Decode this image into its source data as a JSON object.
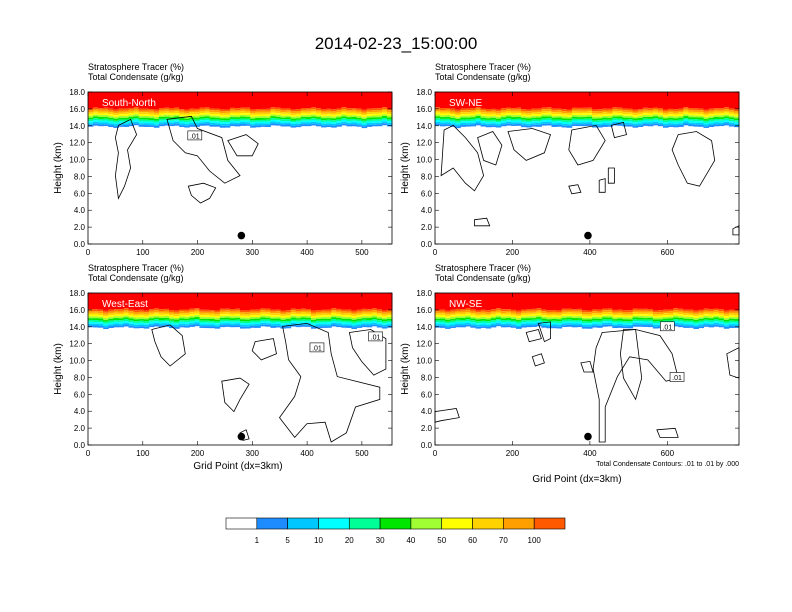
{
  "chart_data": [
    {
      "type": "heatmap",
      "title": "2014-02-23_15:00:00",
      "panels": [
        {
          "id": "sn",
          "label": "South-North",
          "header": [
            "Stratosphere Tracer   (%)",
            "Total Condensate   (g/kg)"
          ],
          "ylabel": "Height (km)",
          "xlabel": "",
          "xlim": [
            0,
            555
          ],
          "xticks": [
            0,
            100,
            200,
            300,
            400,
            500
          ],
          "ylim": [
            0,
            18
          ],
          "yticks": [
            "0.0",
            "2.0",
            "4.0",
            "6.0",
            "8.0",
            "10.0",
            "12.0",
            "14.0",
            "16.0",
            "18.0"
          ],
          "marker_x": 280,
          "marker_y": 1.0,
          "contour_labels": [
            {
              "text": ".01",
              "x": 195,
              "y": 12.8
            }
          ]
        },
        {
          "id": "swne",
          "label": "SW-NE",
          "header": [
            "Stratosphere Tracer   (%)",
            "Total Condensate   (g/kg)"
          ],
          "ylabel": "Height (km)",
          "xlabel": "",
          "xlim": [
            0,
            785
          ],
          "xticks": [
            0,
            200,
            400,
            600
          ],
          "ylim": [
            0,
            18
          ],
          "yticks": [
            "0.0",
            "2.0",
            "4.0",
            "6.0",
            "8.0",
            "10.0",
            "12.0",
            "14.0",
            "16.0",
            "18.0"
          ],
          "marker_x": 395,
          "marker_y": 1.0,
          "contour_labels": []
        },
        {
          "id": "we",
          "label": "West-East",
          "header": [
            "Stratosphere Tracer   (%)",
            "Total Condensate   (g/kg)"
          ],
          "ylabel": "Height (km)",
          "xlabel": "Grid Point (dx=3km)",
          "xlim": [
            0,
            555
          ],
          "xticks": [
            0,
            100,
            200,
            300,
            400,
            500
          ],
          "ylim": [
            0,
            18
          ],
          "yticks": [
            "0.0",
            "2.0",
            "4.0",
            "6.0",
            "8.0",
            "10.0",
            "12.0",
            "14.0",
            "16.0",
            "18.0"
          ],
          "marker_x": 280,
          "marker_y": 1.0,
          "contour_labels": [
            {
              "text": ".01",
              "x": 418,
              "y": 11.5
            },
            {
              "text": ".01",
              "x": 525,
              "y": 12.8
            }
          ]
        },
        {
          "id": "nwse",
          "label": "NW-SE",
          "header": [
            "Stratosphere Tracer   (%)",
            "Total Condensate   (g/kg)"
          ],
          "ylabel": "Height (km)",
          "xlabel": "Grid Point (dx=3km)",
          "xlim": [
            0,
            785
          ],
          "xticks": [
            0,
            200,
            400,
            600
          ],
          "ylim": [
            0,
            18
          ],
          "yticks": [
            "0.0",
            "2.0",
            "4.0",
            "6.0",
            "8.0",
            "10.0",
            "12.0",
            "14.0",
            "16.0",
            "18.0"
          ],
          "marker_x": 395,
          "marker_y": 1.0,
          "contour_labels": [
            {
              "text": ".01",
              "x": 600,
              "y": 14.0
            },
            {
              "text": ".01",
              "x": 625,
              "y": 8.0
            }
          ],
          "footnote": "Total Condensate Contours: .01 to .01 by .000"
        }
      ],
      "colorbar": {
        "levels": [
          "1",
          "5",
          "10",
          "20",
          "30",
          "40",
          "50",
          "60",
          "70",
          "100"
        ],
        "colors": [
          "#ffffff",
          "#1e8cff",
          "#00c8ff",
          "#00ffff",
          "#00ff96",
          "#00e600",
          "#a0ff32",
          "#ffff00",
          "#ffd200",
          "#ffa000",
          "#ff5a00",
          "#ff0000"
        ]
      }
    }
  ]
}
